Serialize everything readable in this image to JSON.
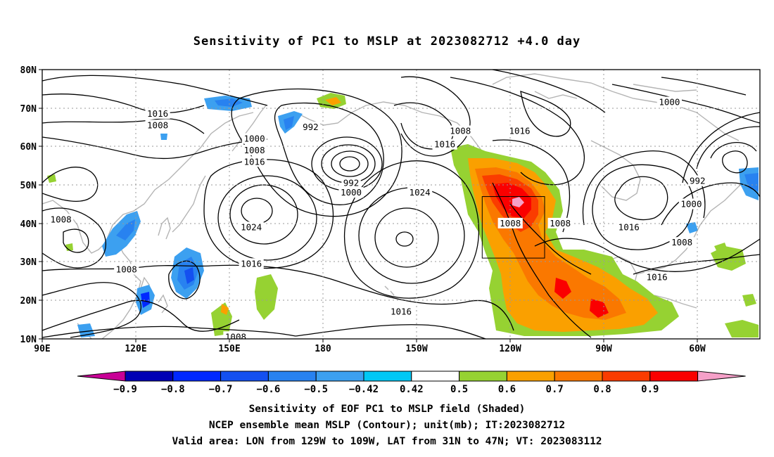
{
  "title": "Sensitivity of PC1 to MSLP at 2023082712 +4.0 day",
  "map": {
    "lat_ticks": [
      "80N",
      "70N",
      "60N",
      "50N",
      "40N",
      "30N",
      "20N",
      "10N"
    ],
    "lon_ticks": [
      "90E",
      "120E",
      "150E",
      "180",
      "150W",
      "120W",
      "90W",
      "60W"
    ],
    "contour_labels": [
      {
        "text": "1016",
        "lon": 127,
        "lat": 68.5
      },
      {
        "text": "1008",
        "lon": 127,
        "lat": 65.5
      },
      {
        "text": "992",
        "lon": 176,
        "lat": 65
      },
      {
        "text": "1000",
        "lon": 158,
        "lat": 62
      },
      {
        "text": "1008",
        "lon": 158,
        "lat": 59
      },
      {
        "text": "1016",
        "lon": 158,
        "lat": 56
      },
      {
        "text": "992",
        "lon": 189,
        "lat": 50.5
      },
      {
        "text": "1000",
        "lon": 189,
        "lat": 48
      },
      {
        "text": "1024",
        "lon": 211,
        "lat": 48
      },
      {
        "text": "1008",
        "lon": 224,
        "lat": 64
      },
      {
        "text": "1016",
        "lon": 219,
        "lat": 60.5
      },
      {
        "text": "1016",
        "lon": 243,
        "lat": 64
      },
      {
        "text": "1000",
        "lon": 291,
        "lat": 71.5
      },
      {
        "text": "992",
        "lon": 300,
        "lat": 51
      },
      {
        "text": "1000",
        "lon": 298,
        "lat": 45
      },
      {
        "text": "1024",
        "lon": 157,
        "lat": 39
      },
      {
        "text": "1008",
        "lon": 96,
        "lat": 41
      },
      {
        "text": "1008",
        "lon": 117,
        "lat": 28
      },
      {
        "text": "1016",
        "lon": 157,
        "lat": 29.5
      },
      {
        "text": "1016",
        "lon": 205,
        "lat": 17
      },
      {
        "text": "1008",
        "lon": 152,
        "lat": 10.5
      },
      {
        "text": "1008",
        "lon": 240,
        "lat": 40
      },
      {
        "text": "1008",
        "lon": 256,
        "lat": 40
      },
      {
        "text": "1016",
        "lon": 278,
        "lat": 39
      },
      {
        "text": "1008",
        "lon": 295,
        "lat": 35
      },
      {
        "text": "1016",
        "lon": 287,
        "lat": 26
      }
    ],
    "valid_box": {
      "lon_min": -129,
      "lon_max": -109,
      "lat_min": 31,
      "lat_max": 47
    }
  },
  "colorbar": {
    "labels": [
      "−0.9",
      "−0.8",
      "−0.7",
      "−0.6",
      "−0.5",
      "−0.42",
      "0.42",
      "0.5",
      "0.6",
      "0.7",
      "0.8",
      "0.9"
    ],
    "colors": [
      "#0000b4",
      "#0028ff",
      "#1450f0",
      "#2882f0",
      "#3ca0f0",
      "#00c8f5",
      "#ffffff",
      "#96d232",
      "#faa000",
      "#fa7800",
      "#fa3c00",
      "#fa0000"
    ],
    "low_end_color": "#c80096",
    "high_end_color": "#f5a0c8"
  },
  "captions": {
    "line1": "Sensitivity of EOF PC1 to MSLP field (Shaded)",
    "line2": "NCEP ensemble mean MSLP (Contour); unit(mb); IT:2023082712",
    "line3": "Valid area: LON from 129W to 109W, LAT from 31N to 47N; VT: 2023083112"
  }
}
